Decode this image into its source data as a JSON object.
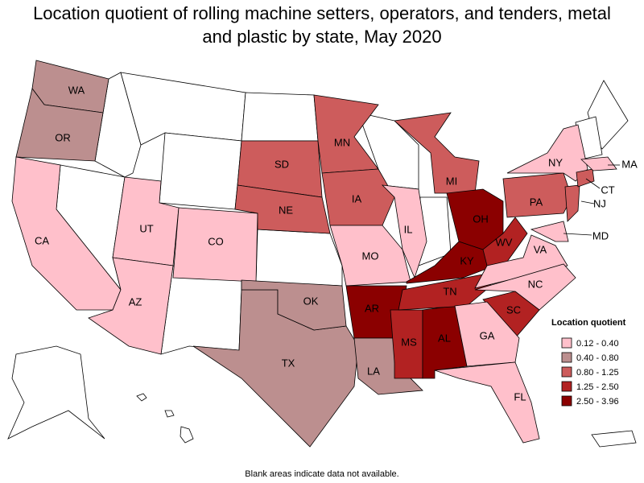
{
  "title": "Location quotient of rolling machine setters, operators, and tenders, metal and plastic by state, May 2020",
  "legend": {
    "title": "Location quotient",
    "bins": [
      {
        "label": "0.12 - 0.40",
        "color": "#ffc0cb"
      },
      {
        "label": "0.40 - 0.80",
        "color": "#bc8f8f"
      },
      {
        "label": "0.80 - 1.25",
        "color": "#cd5c5c"
      },
      {
        "label": "1.25 - 2.50",
        "color": "#b22222"
      },
      {
        "label": "2.50 - 3.96",
        "color": "#8b0000"
      }
    ]
  },
  "states": [
    {
      "label": "WA",
      "color": "#bc8f8f"
    },
    {
      "label": "OR",
      "color": "#bc8f8f"
    },
    {
      "label": "CA",
      "color": "#ffc0cb"
    },
    {
      "label": "UT",
      "color": "#ffc0cb"
    },
    {
      "label": "AZ",
      "color": "#ffc0cb"
    },
    {
      "label": "CO",
      "color": "#ffc0cb"
    },
    {
      "label": "SD",
      "color": "#cd5c5c"
    },
    {
      "label": "NE",
      "color": "#cd5c5c"
    },
    {
      "label": "MN",
      "color": "#cd5c5c"
    },
    {
      "label": "IA",
      "color": "#cd5c5c"
    },
    {
      "label": "MO",
      "color": "#ffc0cb"
    },
    {
      "label": "IL",
      "color": "#ffc0cb"
    },
    {
      "label": "MI",
      "color": "#cd5c5c"
    },
    {
      "label": "AR",
      "color": "#8b0000"
    },
    {
      "label": "TX",
      "color": "#bc8f8f"
    },
    {
      "label": "OK",
      "color": "#bc8f8f"
    },
    {
      "label": "LA",
      "color": "#bc8f8f"
    },
    {
      "label": "MS",
      "color": "#b22222"
    },
    {
      "label": "AL",
      "color": "#8b0000"
    },
    {
      "label": "TN",
      "color": "#b22222"
    },
    {
      "label": "KY",
      "color": "#8b0000"
    },
    {
      "label": "OH",
      "color": "#8b0000"
    },
    {
      "label": "WV",
      "color": "#b22222"
    },
    {
      "label": "VA",
      "color": "#ffc0cb"
    },
    {
      "label": "NC",
      "color": "#ffc0cb"
    },
    {
      "label": "SC",
      "color": "#b22222"
    },
    {
      "label": "GA",
      "color": "#ffc0cb"
    },
    {
      "label": "FL",
      "color": "#ffc0cb"
    },
    {
      "label": "PA",
      "color": "#cd5c5c"
    },
    {
      "label": "NY",
      "color": "#ffc0cb"
    },
    {
      "label": "NJ",
      "color": "#cd5c5c"
    },
    {
      "label": "CT",
      "color": "#cd5c5c"
    },
    {
      "label": "MA",
      "color": "#ffc0cb"
    },
    {
      "label": "MD",
      "color": "#ffc0cb"
    }
  ],
  "note": "Blank areas indicate data not available."
}
